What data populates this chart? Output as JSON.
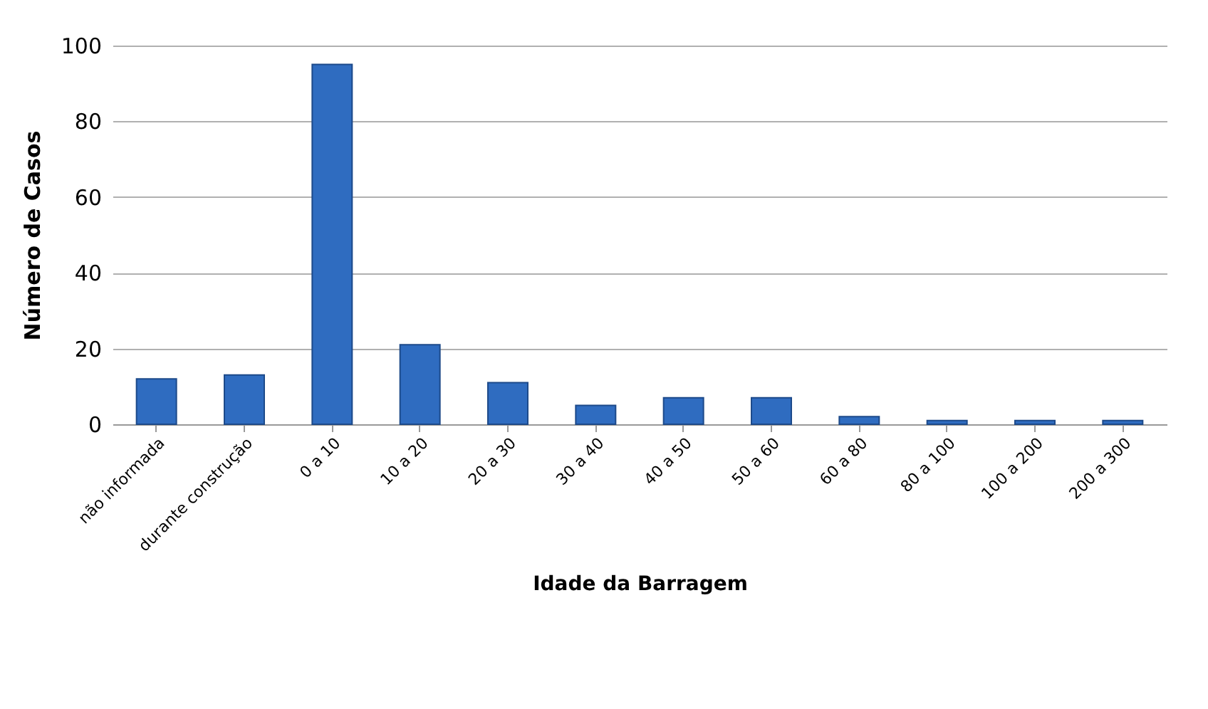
{
  "chart_data": {
    "type": "bar",
    "xlabel": "Idade da Barragem",
    "ylabel": "Número de Casos",
    "categories": [
      "não informada",
      "durante construção",
      "0 a 10",
      "10 a 20",
      "20 a 30",
      "30 a 40",
      "40 a 50",
      "50 a 60",
      "60 a 80",
      "80 a 100",
      "100 a 200",
      "200 a 300"
    ],
    "values": [
      12,
      13,
      95,
      21,
      11,
      5,
      7,
      7,
      2,
      1,
      1,
      1
    ],
    "color": "#2f6cc0",
    "ylim": [
      0,
      100
    ],
    "yticks": [
      0,
      20,
      40,
      60,
      80,
      100
    ],
    "grid": "y"
  }
}
